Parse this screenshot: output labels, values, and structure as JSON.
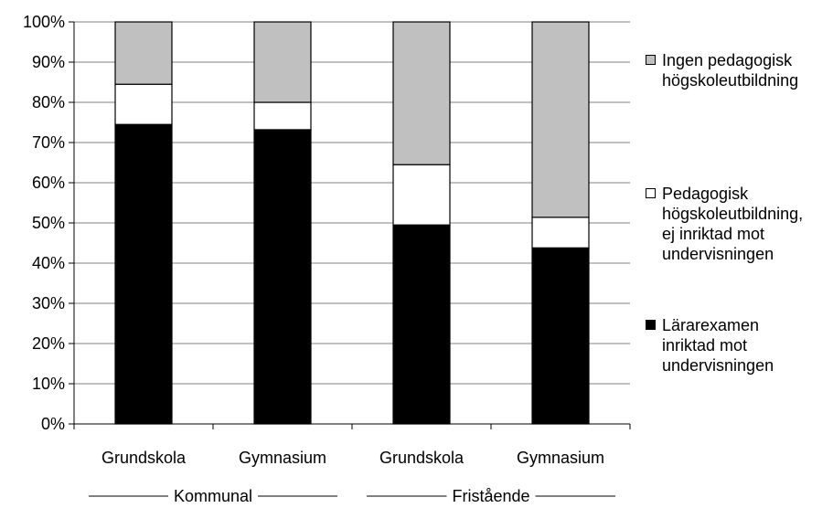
{
  "chart_data": {
    "type": "bar",
    "stacked": true,
    "percent": true,
    "categories": [
      "Grundskola",
      "Gymnasium",
      "Grundskola",
      "Gymnasium"
    ],
    "groups": [
      {
        "label": "Kommunal",
        "categories": [
          0,
          1
        ]
      },
      {
        "label": "Fristående",
        "categories": [
          2,
          3
        ]
      }
    ],
    "series": [
      {
        "name": "Lärarexamen inriktad mot undervisningen",
        "color": "#000000",
        "values": [
          74.5,
          73.2,
          49.5,
          43.8
        ]
      },
      {
        "name": "Pedagogisk högskoleutbildning, ej inriktad mot undervisningen",
        "color": "#ffffff",
        "values": [
          10.0,
          6.8,
          15.0,
          7.6
        ]
      },
      {
        "name": "Ingen pedagogisk högskoleutbildning",
        "color": "#c0c0c0",
        "values": [
          15.5,
          20.0,
          35.5,
          48.6
        ]
      }
    ],
    "yticks": [
      "0%",
      "10%",
      "20%",
      "30%",
      "40%",
      "50%",
      "60%",
      "70%",
      "80%",
      "90%",
      "100%"
    ],
    "ylim": [
      0,
      100
    ],
    "grid": true,
    "legend_position": "right"
  },
  "legend": [
    {
      "label": "Ingen pedagogisk\nhögskoleutbildning",
      "color": "#c0c0c0"
    },
    {
      "label": "Pedagogisk\nhögskoleutbildning,\nej inriktad mot\nundervisningen",
      "color": "#ffffff"
    },
    {
      "label": "Lärarexamen\ninriktad mot\nundervisningen",
      "color": "#000000"
    }
  ]
}
